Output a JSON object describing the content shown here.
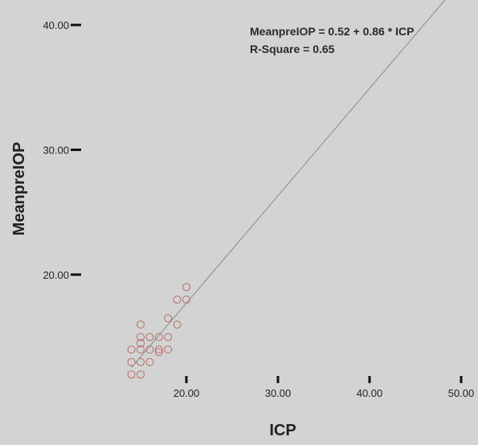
{
  "chart_data": {
    "type": "scatter",
    "xlabel": "ICP",
    "ylabel": "MeanpreIOP",
    "xlim": [
      10,
      50
    ],
    "ylim": [
      11.5,
      42
    ],
    "x_ticks": [
      20,
      30,
      40,
      50
    ],
    "y_ticks": [
      20,
      30,
      40
    ],
    "x_tick_labels": [
      "20.00",
      "30.00",
      "40.00",
      "50.00"
    ],
    "y_tick_labels": [
      "20.00",
      "30.00",
      "40.00"
    ],
    "grid": false,
    "points": [
      {
        "x": 14,
        "y": 14.0
      },
      {
        "x": 14,
        "y": 13.0
      },
      {
        "x": 14,
        "y": 12.0
      },
      {
        "x": 15,
        "y": 16.0
      },
      {
        "x": 15,
        "y": 15.0
      },
      {
        "x": 15,
        "y": 14.5
      },
      {
        "x": 15,
        "y": 14.0
      },
      {
        "x": 15,
        "y": 13.0
      },
      {
        "x": 15,
        "y": 12.0
      },
      {
        "x": 16,
        "y": 15.0
      },
      {
        "x": 16,
        "y": 14.0
      },
      {
        "x": 16,
        "y": 13.0
      },
      {
        "x": 17,
        "y": 15.0
      },
      {
        "x": 17,
        "y": 14.0
      },
      {
        "x": 17,
        "y": 13.8
      },
      {
        "x": 18,
        "y": 16.5
      },
      {
        "x": 18,
        "y": 15.0
      },
      {
        "x": 18,
        "y": 14.0
      },
      {
        "x": 19,
        "y": 18.0
      },
      {
        "x": 19,
        "y": 16.0
      },
      {
        "x": 20,
        "y": 19.0
      },
      {
        "x": 20,
        "y": 18.0
      }
    ],
    "fit_line": {
      "intercept": 0.52,
      "slope": 0.86
    },
    "annotations": [
      "MeanpreIOP = 0.52 + 0.86 * ICP",
      "R-Square = 0.65"
    ],
    "colors": {
      "background": "#d3d3d3",
      "point_stroke": "#b86a66",
      "fit_line": "#8a8a8a",
      "tick_mark": "#111111"
    }
  }
}
